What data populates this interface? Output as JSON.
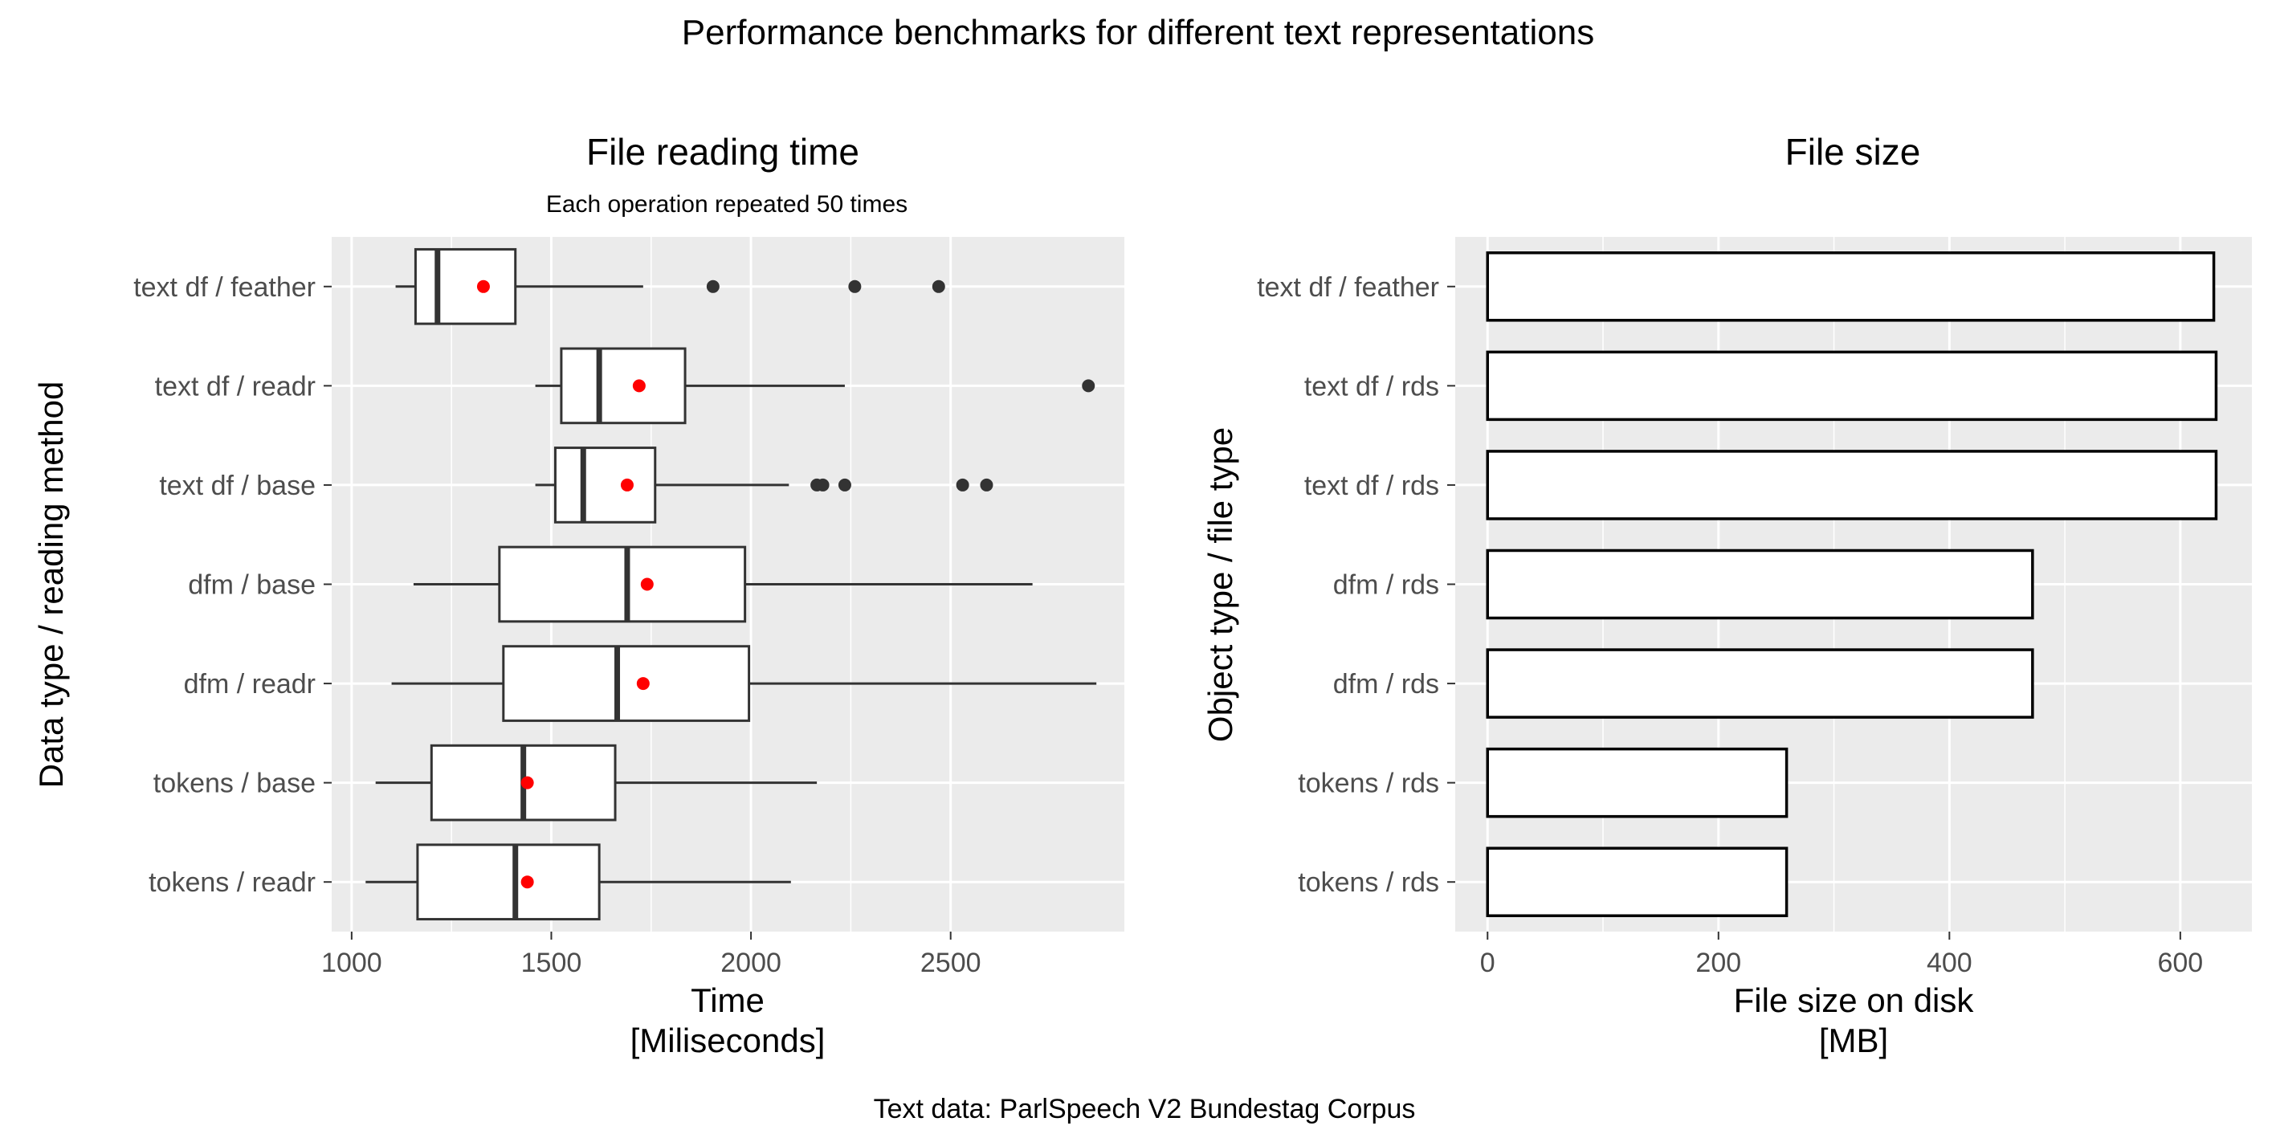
{
  "title": "Performance benchmarks for different text representations",
  "caption": "Text data: ParlSpeech V2 Bundestag Corpus",
  "chart_data": [
    {
      "type": "boxplot",
      "title": "File reading time",
      "subtitle": "Each operation repeated 50 times",
      "xlabel": "Time\n[Miliseconds]",
      "ylabel": "Data type / reading method",
      "xlim": [
        950,
        2935
      ],
      "xticks": [
        1000,
        1500,
        2000,
        2500
      ],
      "grid": true,
      "mean_marker_color": "#ff0000",
      "categories": [
        "text df / feather",
        "text df / readr",
        "text df / base",
        "dfm / base",
        "dfm / readr",
        "tokens / base",
        "tokens / readr"
      ],
      "boxes": [
        {
          "label": "text df / feather",
          "min": 1110,
          "q1": 1160,
          "median": 1215,
          "q3": 1410,
          "max": 1730,
          "mean": 1330,
          "outliers": [
            1905,
            2260,
            2470
          ]
        },
        {
          "label": "text df / readr",
          "min": 1460,
          "q1": 1525,
          "median": 1620,
          "q3": 1835,
          "max": 2235,
          "mean": 1720,
          "outliers": [
            2845
          ]
        },
        {
          "label": "text df / base",
          "min": 1460,
          "q1": 1510,
          "median": 1580,
          "q3": 1760,
          "max": 2095,
          "mean": 1690,
          "outliers": [
            2165,
            2180,
            2235,
            2530,
            2590
          ]
        },
        {
          "label": "dfm / base",
          "min": 1155,
          "q1": 1370,
          "median": 1690,
          "q3": 1985,
          "max": 2705,
          "mean": 1740,
          "outliers": []
        },
        {
          "label": "dfm / readr",
          "min": 1100,
          "q1": 1380,
          "median": 1665,
          "q3": 1995,
          "max": 2865,
          "mean": 1730,
          "outliers": []
        },
        {
          "label": "tokens / base",
          "min": 1060,
          "q1": 1200,
          "median": 1430,
          "q3": 1660,
          "max": 2165,
          "mean": 1440,
          "outliers": []
        },
        {
          "label": "tokens / readr",
          "min": 1035,
          "q1": 1165,
          "median": 1410,
          "q3": 1620,
          "max": 2100,
          "mean": 1440,
          "outliers": []
        }
      ]
    },
    {
      "type": "bar",
      "orientation": "horizontal",
      "title": "File size",
      "xlabel": "File size on disk\n[MB]",
      "ylabel": "Object type / file type",
      "xlim": [
        -28,
        662
      ],
      "xticks": [
        0,
        200,
        400,
        600
      ],
      "grid": true,
      "categories": [
        "text df / feather",
        "text df / rds",
        "text df / rds",
        "dfm / rds",
        "dfm / rds",
        "tokens / rds",
        "tokens / rds"
      ],
      "values": [
        629,
        631,
        631,
        472,
        472,
        259,
        259
      ]
    }
  ]
}
